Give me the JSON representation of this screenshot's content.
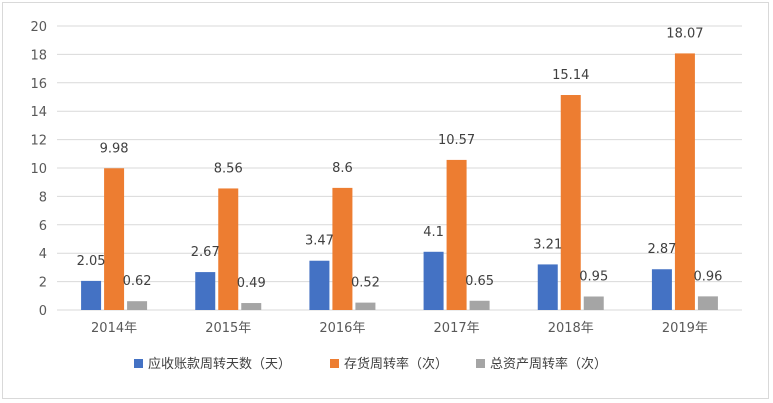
{
  "chart_data": {
    "type": "bar",
    "title": "",
    "xlabel": "",
    "ylabel": "",
    "categories": [
      "2014年",
      "2015年",
      "2016年",
      "2017年",
      "2018年",
      "2019年"
    ],
    "ylim": [
      0,
      20
    ],
    "yticks": [
      0,
      2,
      4,
      6,
      8,
      10,
      12,
      14,
      16,
      18,
      20
    ],
    "grid": true,
    "legend_position": "bottom",
    "series": [
      {
        "name": "应收账款周转天数（天）",
        "color": "#4472c4",
        "values": [
          2.05,
          2.67,
          3.47,
          4.1,
          3.21,
          2.87
        ],
        "labels": [
          "2.05",
          "2.67",
          "3.47",
          "4.1",
          "3.21",
          "2.87"
        ]
      },
      {
        "name": "存货周转率（次）",
        "color": "#ed7d31",
        "values": [
          9.98,
          8.56,
          8.6,
          10.57,
          15.14,
          18.07
        ],
        "labels": [
          "9.98",
          "8.56",
          "8.6",
          "10.57",
          "15.14",
          "18.07"
        ]
      },
      {
        "name": "总资产周转率（次）",
        "color": "#a5a5a5",
        "values": [
          0.62,
          0.49,
          0.52,
          0.65,
          0.95,
          0.96
        ],
        "labels": [
          "0.62",
          "0.49",
          "0.52",
          "0.65",
          "0.95",
          "0.96"
        ]
      }
    ]
  }
}
